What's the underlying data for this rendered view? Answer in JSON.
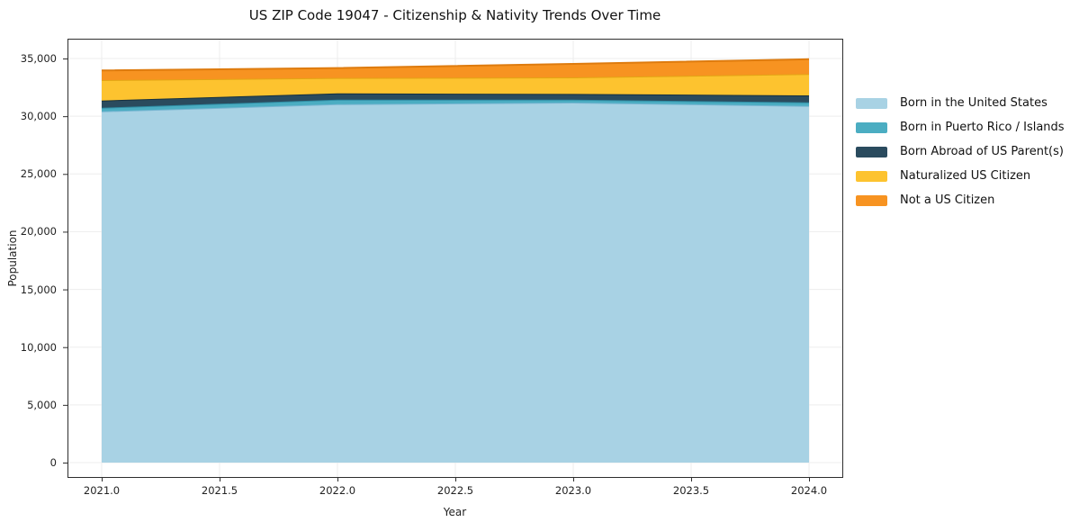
{
  "chart_data": {
    "type": "area",
    "stacked": true,
    "title": "US ZIP Code 19047 - Citizenship & Nativity Trends Over Time",
    "xlabel": "Year",
    "ylabel": "Population",
    "x": [
      2021,
      2022,
      2023,
      2024
    ],
    "series": [
      {
        "name": "Born in the United States",
        "color": "#a8d2e4",
        "edge": "#79b6d2",
        "values": [
          30420,
          31040,
          31180,
          30890
        ]
      },
      {
        "name": "Born in Puerto Rico / Islands",
        "color": "#4badc2",
        "edge": "#2f8da4",
        "values": [
          310,
          390,
          250,
          310
        ]
      },
      {
        "name": "Born Abroad of US Parent(s)",
        "color": "#2a4b5e",
        "edge": "#16303f",
        "values": [
          630,
          550,
          500,
          600
        ]
      },
      {
        "name": "Naturalized US Citizen",
        "color": "#fdc32f",
        "edge": "#e3a514",
        "values": [
          1770,
          1330,
          1430,
          1860
        ]
      },
      {
        "name": "Not a US Citizen",
        "color": "#f79321",
        "edge": "#de7b0e",
        "values": [
          840,
          860,
          1170,
          1280
        ]
      }
    ],
    "totals": [
      33970,
      34170,
      34530,
      34940
    ],
    "xticks": [
      2021.0,
      2021.5,
      2022.0,
      2022.5,
      2023.0,
      2023.5,
      2024.0
    ],
    "xtick_labels": [
      "2021.0",
      "2021.5",
      "2022.0",
      "2022.5",
      "2023.0",
      "2023.5",
      "2024.0"
    ],
    "yticks": [
      0,
      5000,
      10000,
      15000,
      20000,
      25000,
      30000,
      35000
    ],
    "ytick_labels": [
      "0",
      "5,000",
      "10,000",
      "15,000",
      "20,000",
      "25,000",
      "30,000",
      "35,000"
    ],
    "ylim": [
      0,
      35000
    ],
    "grid": true,
    "legend_position": "right-outside",
    "colors": {
      "grid": "#ededed",
      "spine": "#2e2e2e",
      "background": "#ffffff",
      "text": "#222222"
    }
  }
}
